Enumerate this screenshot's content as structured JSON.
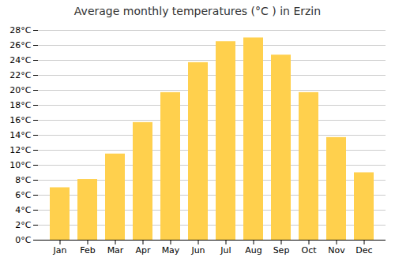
{
  "chart_data": {
    "type": "bar",
    "title": "Average monthly temperatures (°C ) in Erzin",
    "categories": [
      "Jan",
      "Feb",
      "Mar",
      "Apr",
      "May",
      "Jun",
      "Jul",
      "Aug",
      "Sep",
      "Oct",
      "Nov",
      "Dec"
    ],
    "values": [
      7.0,
      8.1,
      11.5,
      15.7,
      19.7,
      23.7,
      26.5,
      27.0,
      24.7,
      19.7,
      13.7,
      9.0
    ],
    "color": "#FFD04D",
    "ylim": [
      0,
      28
    ],
    "yticks": [
      {
        "value": 0,
        "label": "0°C"
      },
      {
        "value": 2,
        "label": "2°C"
      },
      {
        "value": 4,
        "label": "4°C"
      },
      {
        "value": 6,
        "label": "6°C"
      },
      {
        "value": 8,
        "label": "8°C"
      },
      {
        "value": 10,
        "label": "10°C"
      },
      {
        "value": 12,
        "label": "12°C"
      },
      {
        "value": 14,
        "label": "14°C"
      },
      {
        "value": 16,
        "label": "16°C"
      },
      {
        "value": 18,
        "label": "18°C"
      },
      {
        "value": 20,
        "label": "20°C"
      },
      {
        "value": 22,
        "label": "22°C"
      },
      {
        "value": 24,
        "label": "24°C"
      },
      {
        "value": 26,
        "label": "26°C"
      },
      {
        "value": 28,
        "label": "28°C"
      }
    ],
    "grid": true
  }
}
